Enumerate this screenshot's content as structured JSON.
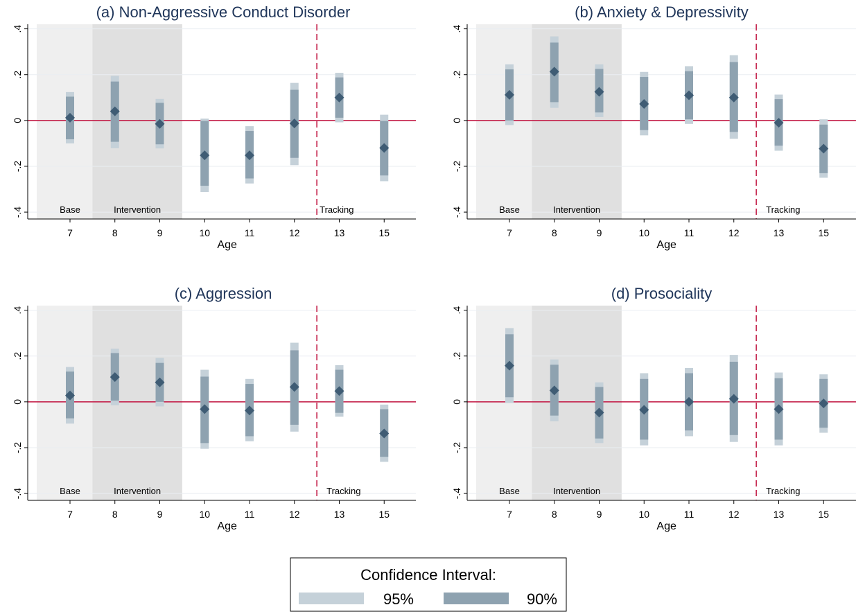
{
  "colors": {
    "base_shade": "#efefef",
    "intervention_shade": "#e0e0e0",
    "ci95": "#c5d1d9",
    "ci90": "#8ea2b0",
    "point": "#3f5c74",
    "zero_line": "#c1123f",
    "tracking_line": "#c1123f",
    "title": "#1f3559"
  },
  "chart_data": [
    {
      "type": "scatter",
      "title": "(a) Non-Aggressive Conduct Disorder",
      "xlabel": "Age",
      "ylabel": "",
      "categories": [
        "7",
        "8",
        "9",
        "10",
        "11",
        "12",
        "13",
        "15"
      ],
      "y_ticks": [
        "-.4",
        "-.2",
        "0",
        ".2",
        ".4"
      ],
      "ylim": [
        -0.43,
        0.42
      ],
      "region_labels": {
        "base": "Base",
        "intervention": "Intervention",
        "tracking": "Tracking"
      },
      "points": [
        0.012,
        0.04,
        -0.015,
        -0.152,
        -0.152,
        -0.013,
        0.1,
        -0.12
      ],
      "ci90": [
        [
          -0.082,
          0.104
        ],
        [
          -0.093,
          0.17
        ],
        [
          -0.104,
          0.077
        ],
        [
          -0.285,
          -0.002
        ],
        [
          -0.253,
          -0.046
        ],
        [
          -0.163,
          0.134
        ],
        [
          0.012,
          0.188
        ],
        [
          -0.24,
          -0.002
        ]
      ],
      "ci95": [
        [
          -0.1,
          0.124
        ],
        [
          -0.121,
          0.195
        ],
        [
          -0.122,
          0.094
        ],
        [
          -0.312,
          0.008
        ],
        [
          -0.275,
          -0.025
        ],
        [
          -0.195,
          0.164
        ],
        [
          -0.008,
          0.208
        ],
        [
          -0.265,
          0.025
        ]
      ]
    },
    {
      "type": "scatter",
      "title": "(b) Anxiety & Depressivity",
      "xlabel": "Age",
      "ylabel": "",
      "categories": [
        "7",
        "8",
        "9",
        "10",
        "11",
        "12",
        "13",
        "15"
      ],
      "y_ticks": [
        "-.4",
        "-.2",
        "0",
        ".2",
        ".4"
      ],
      "ylim": [
        -0.43,
        0.42
      ],
      "region_labels": {
        "base": "Base",
        "intervention": "Intervention",
        "tracking": "Tracking"
      },
      "points": [
        0.112,
        0.213,
        0.125,
        0.072,
        0.11,
        0.1,
        -0.01,
        -0.123
      ],
      "ci90": [
        [
          0.0,
          0.223
        ],
        [
          0.08,
          0.34
        ],
        [
          0.035,
          0.225
        ],
        [
          -0.042,
          0.19
        ],
        [
          0.005,
          0.215
        ],
        [
          -0.05,
          0.255
        ],
        [
          -0.11,
          0.093
        ],
        [
          -0.23,
          -0.018
        ]
      ],
      "ci95": [
        [
          -0.02,
          0.245
        ],
        [
          0.055,
          0.367
        ],
        [
          0.015,
          0.245
        ],
        [
          -0.065,
          0.212
        ],
        [
          -0.015,
          0.237
        ],
        [
          -0.08,
          0.285
        ],
        [
          -0.132,
          0.113
        ],
        [
          -0.25,
          0.005
        ]
      ]
    },
    {
      "type": "scatter",
      "title": "(c) Aggression",
      "xlabel": "Age",
      "ylabel": "",
      "categories": [
        "7",
        "8",
        "9",
        "10",
        "11",
        "12",
        "13",
        "15"
      ],
      "y_ticks": [
        "-.4",
        "-.2",
        "0",
        ".2",
        ".4"
      ],
      "ylim": [
        -0.43,
        0.42
      ],
      "region_labels": {
        "base": "Base",
        "intervention": "Intervention",
        "tracking": "Tracking"
      },
      "points": [
        0.028,
        0.108,
        0.085,
        -0.032,
        -0.038,
        0.065,
        0.047,
        -0.138
      ],
      "ci90": [
        [
          -0.072,
          0.132
        ],
        [
          0.005,
          0.213
        ],
        [
          0.0,
          0.17
        ],
        [
          -0.18,
          0.11
        ],
        [
          -0.15,
          0.078
        ],
        [
          -0.1,
          0.225
        ],
        [
          -0.048,
          0.14
        ],
        [
          -0.24,
          -0.032
        ]
      ],
      "ci95": [
        [
          -0.095,
          0.152
        ],
        [
          -0.015,
          0.232
        ],
        [
          -0.02,
          0.192
        ],
        [
          -0.205,
          0.14
        ],
        [
          -0.172,
          0.1
        ],
        [
          -0.13,
          0.258
        ],
        [
          -0.065,
          0.16
        ],
        [
          -0.262,
          -0.012
        ]
      ]
    },
    {
      "type": "scatter",
      "title": "(d) Prosociality",
      "xlabel": "Age",
      "ylabel": "",
      "categories": [
        "7",
        "8",
        "9",
        "10",
        "11",
        "12",
        "13",
        "15"
      ],
      "y_ticks": [
        "-.4",
        "-.2",
        "0",
        ".2",
        ".4"
      ],
      "ylim": [
        -0.43,
        0.42
      ],
      "region_labels": {
        "base": "Base",
        "intervention": "Intervention",
        "tracking": "Tracking"
      },
      "points": [
        0.158,
        0.05,
        -0.047,
        -0.035,
        0.0,
        0.013,
        -0.032,
        -0.007
      ],
      "ci90": [
        [
          0.02,
          0.295
        ],
        [
          -0.06,
          0.162
        ],
        [
          -0.16,
          0.065
        ],
        [
          -0.165,
          0.1
        ],
        [
          -0.125,
          0.125
        ],
        [
          -0.145,
          0.175
        ],
        [
          -0.165,
          0.103
        ],
        [
          -0.113,
          0.1
        ]
      ],
      "ci95": [
        [
          -0.005,
          0.322
        ],
        [
          -0.085,
          0.185
        ],
        [
          -0.18,
          0.085
        ],
        [
          -0.19,
          0.125
        ],
        [
          -0.15,
          0.148
        ],
        [
          -0.175,
          0.205
        ],
        [
          -0.19,
          0.128
        ],
        [
          -0.135,
          0.12
        ]
      ]
    }
  ],
  "legend": {
    "title": "Confidence Interval:",
    "items": [
      {
        "label": "95%",
        "color_key": "ci95"
      },
      {
        "label": "90%",
        "color_key": "ci90"
      }
    ]
  }
}
